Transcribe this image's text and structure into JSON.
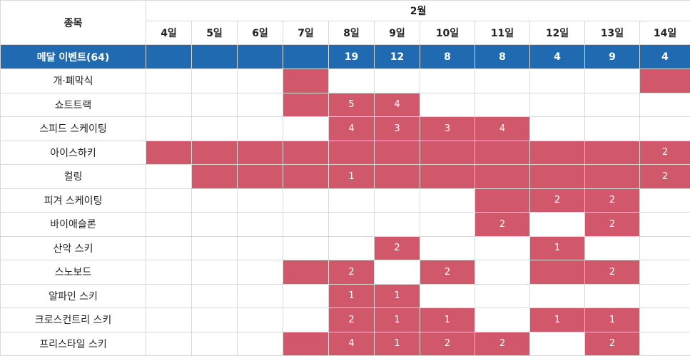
{
  "header": {
    "sport_col": "종목",
    "month": "2월",
    "days": [
      "4일",
      "5일",
      "6일",
      "7일",
      "8일",
      "9일",
      "10일",
      "11일",
      "12일",
      "13일",
      "14일"
    ]
  },
  "medal_row": {
    "label": "메달 이벤트(64)",
    "values": [
      "",
      "",
      "",
      "",
      "19",
      "12",
      "8",
      "8",
      "4",
      "9",
      "4"
    ]
  },
  "colors": {
    "header_blue": "#1f6ab0",
    "event_red": "#d1576b"
  },
  "sports": [
    {
      "name": "개·폐막식",
      "cells": [
        {
          "on": false,
          "v": ""
        },
        {
          "on": false,
          "v": ""
        },
        {
          "on": false,
          "v": ""
        },
        {
          "on": true,
          "v": ""
        },
        {
          "on": false,
          "v": ""
        },
        {
          "on": false,
          "v": ""
        },
        {
          "on": false,
          "v": ""
        },
        {
          "on": false,
          "v": ""
        },
        {
          "on": false,
          "v": ""
        },
        {
          "on": false,
          "v": ""
        },
        {
          "on": true,
          "v": ""
        }
      ]
    },
    {
      "name": "쇼트트랙",
      "cells": [
        {
          "on": false,
          "v": ""
        },
        {
          "on": false,
          "v": ""
        },
        {
          "on": false,
          "v": ""
        },
        {
          "on": true,
          "v": ""
        },
        {
          "on": true,
          "v": "5"
        },
        {
          "on": true,
          "v": "4"
        },
        {
          "on": false,
          "v": ""
        },
        {
          "on": false,
          "v": ""
        },
        {
          "on": false,
          "v": ""
        },
        {
          "on": false,
          "v": ""
        },
        {
          "on": false,
          "v": ""
        }
      ]
    },
    {
      "name": "스피드 스케이팅",
      "cells": [
        {
          "on": false,
          "v": ""
        },
        {
          "on": false,
          "v": ""
        },
        {
          "on": false,
          "v": ""
        },
        {
          "on": false,
          "v": ""
        },
        {
          "on": true,
          "v": "4"
        },
        {
          "on": true,
          "v": "3"
        },
        {
          "on": true,
          "v": "3"
        },
        {
          "on": true,
          "v": "4"
        },
        {
          "on": false,
          "v": ""
        },
        {
          "on": false,
          "v": ""
        },
        {
          "on": false,
          "v": ""
        }
      ]
    },
    {
      "name": "아이스하키",
      "cells": [
        {
          "on": true,
          "v": ""
        },
        {
          "on": true,
          "v": ""
        },
        {
          "on": true,
          "v": ""
        },
        {
          "on": true,
          "v": ""
        },
        {
          "on": true,
          "v": ""
        },
        {
          "on": true,
          "v": ""
        },
        {
          "on": true,
          "v": ""
        },
        {
          "on": true,
          "v": ""
        },
        {
          "on": true,
          "v": ""
        },
        {
          "on": true,
          "v": ""
        },
        {
          "on": true,
          "v": "2"
        }
      ]
    },
    {
      "name": "컬링",
      "cells": [
        {
          "on": false,
          "v": ""
        },
        {
          "on": true,
          "v": ""
        },
        {
          "on": true,
          "v": ""
        },
        {
          "on": true,
          "v": ""
        },
        {
          "on": true,
          "v": "1"
        },
        {
          "on": true,
          "v": ""
        },
        {
          "on": true,
          "v": ""
        },
        {
          "on": true,
          "v": ""
        },
        {
          "on": true,
          "v": ""
        },
        {
          "on": true,
          "v": ""
        },
        {
          "on": true,
          "v": "2"
        }
      ]
    },
    {
      "name": "피겨 스케이팅",
      "cells": [
        {
          "on": false,
          "v": ""
        },
        {
          "on": false,
          "v": ""
        },
        {
          "on": false,
          "v": ""
        },
        {
          "on": false,
          "v": ""
        },
        {
          "on": false,
          "v": ""
        },
        {
          "on": false,
          "v": ""
        },
        {
          "on": false,
          "v": ""
        },
        {
          "on": true,
          "v": ""
        },
        {
          "on": true,
          "v": "2"
        },
        {
          "on": true,
          "v": "2"
        },
        {
          "on": false,
          "v": ""
        }
      ]
    },
    {
      "name": "바이애슬론",
      "cells": [
        {
          "on": false,
          "v": ""
        },
        {
          "on": false,
          "v": ""
        },
        {
          "on": false,
          "v": ""
        },
        {
          "on": false,
          "v": ""
        },
        {
          "on": false,
          "v": ""
        },
        {
          "on": false,
          "v": ""
        },
        {
          "on": false,
          "v": ""
        },
        {
          "on": true,
          "v": "2"
        },
        {
          "on": false,
          "v": ""
        },
        {
          "on": true,
          "v": "2"
        },
        {
          "on": false,
          "v": ""
        }
      ]
    },
    {
      "name": "산악 스키",
      "cells": [
        {
          "on": false,
          "v": ""
        },
        {
          "on": false,
          "v": ""
        },
        {
          "on": false,
          "v": ""
        },
        {
          "on": false,
          "v": ""
        },
        {
          "on": false,
          "v": ""
        },
        {
          "on": true,
          "v": "2"
        },
        {
          "on": false,
          "v": ""
        },
        {
          "on": false,
          "v": ""
        },
        {
          "on": true,
          "v": "1"
        },
        {
          "on": false,
          "v": ""
        },
        {
          "on": false,
          "v": ""
        }
      ]
    },
    {
      "name": "스노보드",
      "cells": [
        {
          "on": false,
          "v": ""
        },
        {
          "on": false,
          "v": ""
        },
        {
          "on": false,
          "v": ""
        },
        {
          "on": true,
          "v": ""
        },
        {
          "on": true,
          "v": "2"
        },
        {
          "on": false,
          "v": ""
        },
        {
          "on": true,
          "v": "2"
        },
        {
          "on": false,
          "v": ""
        },
        {
          "on": true,
          "v": ""
        },
        {
          "on": true,
          "v": "2"
        },
        {
          "on": false,
          "v": ""
        }
      ]
    },
    {
      "name": "알파인 스키",
      "cells": [
        {
          "on": false,
          "v": ""
        },
        {
          "on": false,
          "v": ""
        },
        {
          "on": false,
          "v": ""
        },
        {
          "on": false,
          "v": ""
        },
        {
          "on": true,
          "v": "1"
        },
        {
          "on": true,
          "v": "1"
        },
        {
          "on": false,
          "v": ""
        },
        {
          "on": false,
          "v": ""
        },
        {
          "on": false,
          "v": ""
        },
        {
          "on": false,
          "v": ""
        },
        {
          "on": false,
          "v": ""
        }
      ]
    },
    {
      "name": "크로스컨트리 스키",
      "cells": [
        {
          "on": false,
          "v": ""
        },
        {
          "on": false,
          "v": ""
        },
        {
          "on": false,
          "v": ""
        },
        {
          "on": false,
          "v": ""
        },
        {
          "on": true,
          "v": "2"
        },
        {
          "on": true,
          "v": "1"
        },
        {
          "on": true,
          "v": "1"
        },
        {
          "on": false,
          "v": ""
        },
        {
          "on": true,
          "v": "1"
        },
        {
          "on": true,
          "v": "1"
        },
        {
          "on": false,
          "v": ""
        }
      ]
    },
    {
      "name": "프리스타일 스키",
      "cells": [
        {
          "on": false,
          "v": ""
        },
        {
          "on": false,
          "v": ""
        },
        {
          "on": false,
          "v": ""
        },
        {
          "on": true,
          "v": ""
        },
        {
          "on": true,
          "v": "4"
        },
        {
          "on": true,
          "v": "1"
        },
        {
          "on": true,
          "v": "2"
        },
        {
          "on": true,
          "v": "2"
        },
        {
          "on": false,
          "v": ""
        },
        {
          "on": true,
          "v": "2"
        },
        {
          "on": false,
          "v": ""
        }
      ]
    }
  ]
}
